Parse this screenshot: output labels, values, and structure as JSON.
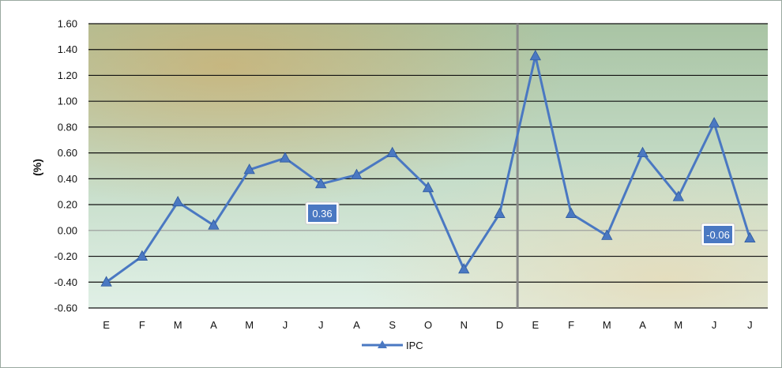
{
  "chart_data": {
    "type": "line",
    "title": "",
    "xlabel": "",
    "ylabel": "(%)",
    "categories": [
      "E",
      "F",
      "M",
      "A",
      "M",
      "J",
      "J",
      "A",
      "S",
      "O",
      "N",
      "D",
      "E",
      "F",
      "M",
      "A",
      "M",
      "J",
      "J"
    ],
    "series": [
      {
        "name": "IPC",
        "values": [
          -0.4,
          -0.2,
          0.22,
          0.04,
          0.47,
          0.56,
          0.36,
          0.43,
          0.6,
          0.33,
          -0.3,
          0.13,
          1.35,
          0.13,
          -0.04,
          0.6,
          0.26,
          0.83,
          -0.06
        ],
        "color": "#4a78c2"
      }
    ],
    "ylim": [
      -0.6,
      1.6
    ],
    "yticks": [
      "-0.60",
      "-0.40",
      "-0.20",
      "0.00",
      "0.20",
      "0.40",
      "0.60",
      "0.80",
      "1.00",
      "1.20",
      "1.40",
      "1.60"
    ],
    "grid": true,
    "legend": "bottom",
    "separator_after_category": 11,
    "data_labels": [
      {
        "index": 6,
        "text": "0.36"
      },
      {
        "index": 18,
        "text": "-0.06"
      }
    ],
    "colors": {
      "line": "#4a78c2",
      "label_box": "#4a78c2",
      "background_top": "#a9c4a4",
      "background_bottom": "#dcefe4",
      "separator": "#888888"
    }
  }
}
